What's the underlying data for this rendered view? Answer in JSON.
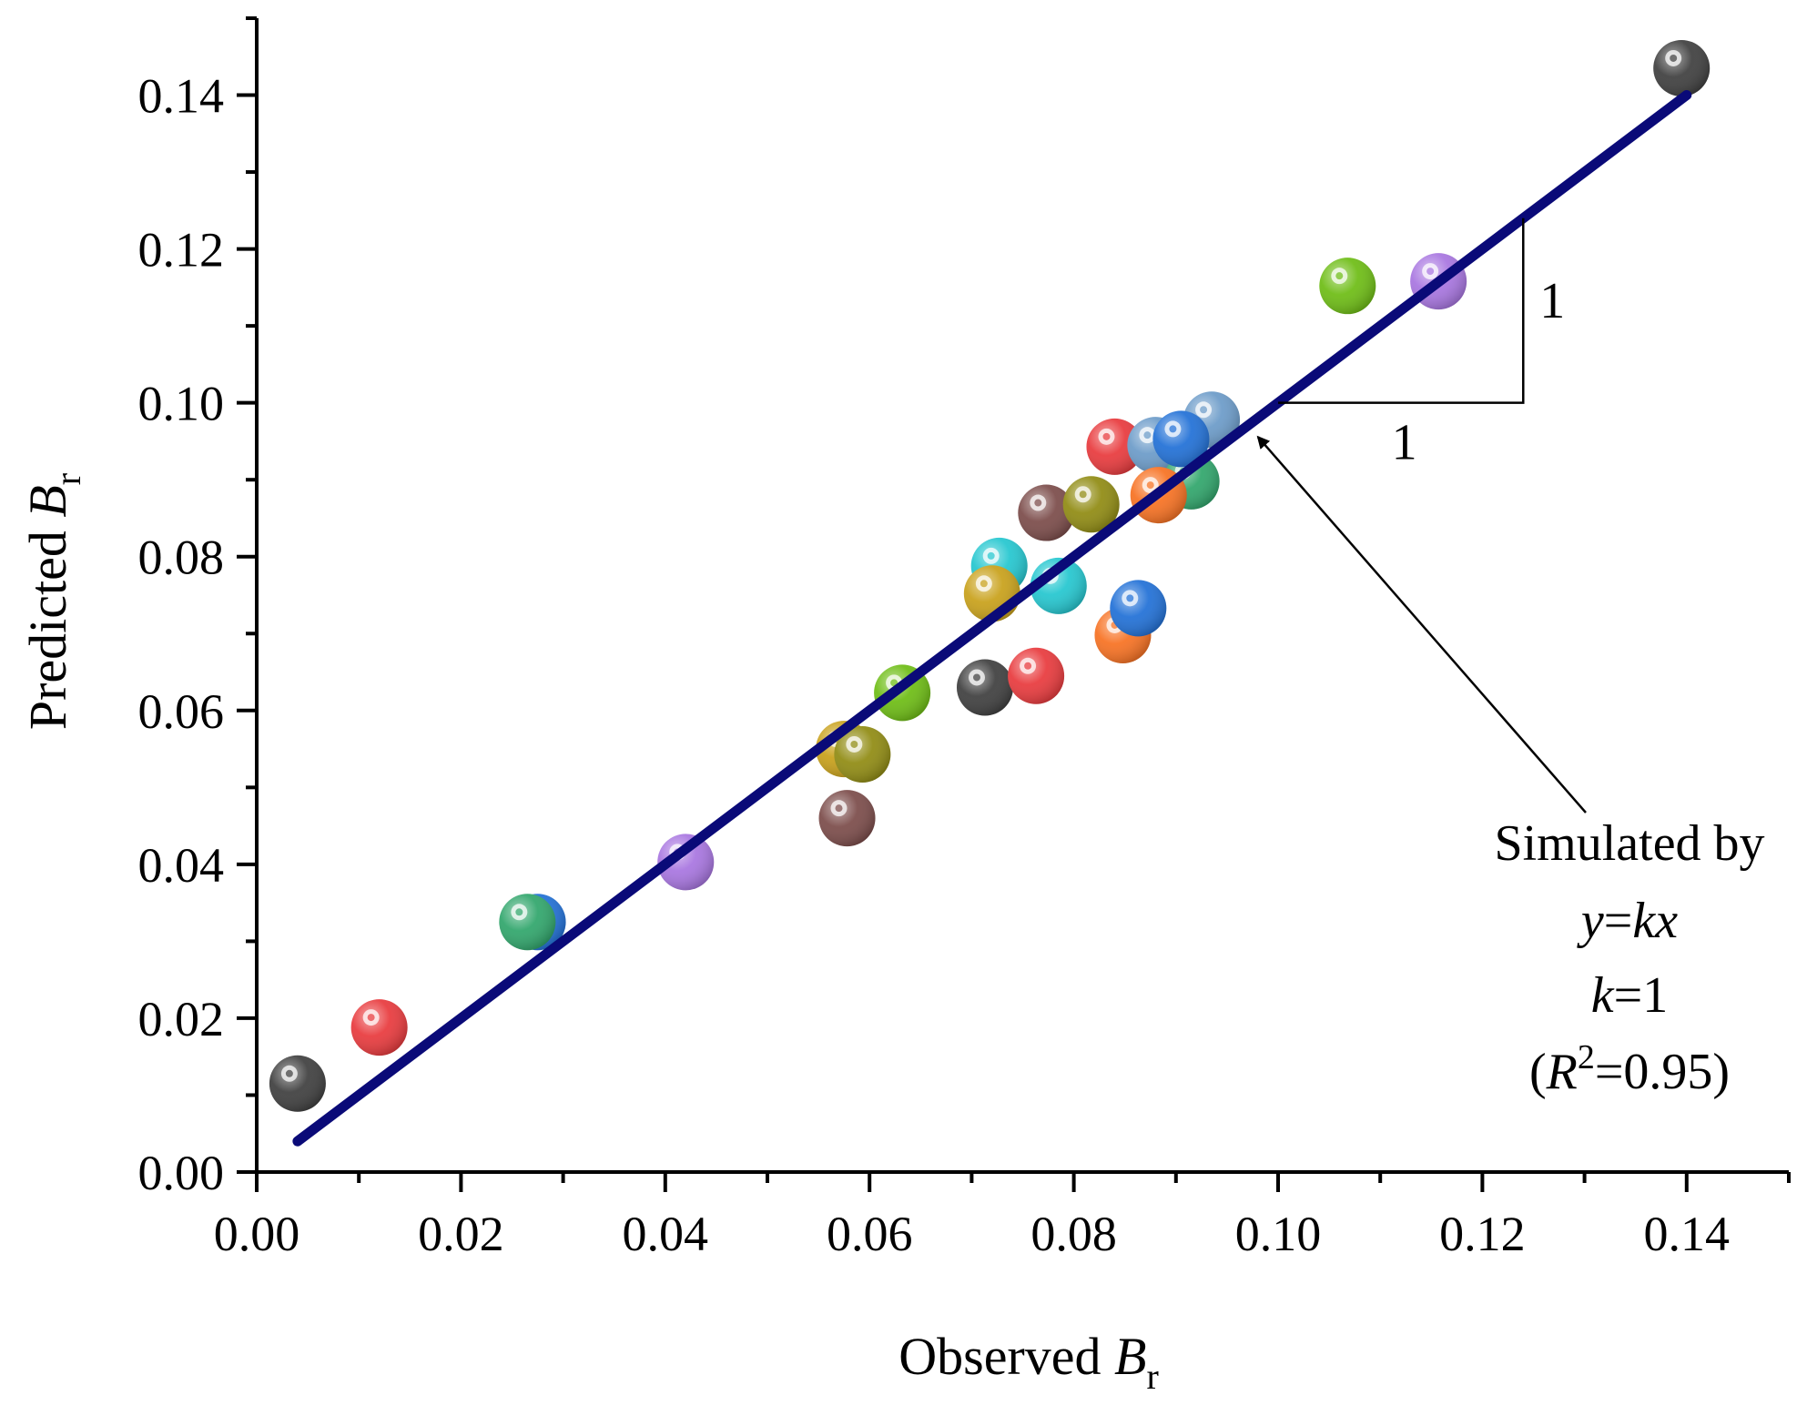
{
  "chart_data": {
    "type": "scatter",
    "xlabel": {
      "text": "Observed ",
      "var": "B",
      "sub": "r"
    },
    "ylabel": {
      "text": "Predicted ",
      "var": "B",
      "sub": "r"
    },
    "xlim": [
      0.0,
      0.15
    ],
    "ylim": [
      0.0,
      0.15
    ],
    "x_ticks": [
      0.0,
      0.02,
      0.04,
      0.06,
      0.08,
      0.1,
      0.12,
      0.14
    ],
    "x_tick_labels": [
      "0.00",
      "0.02",
      "0.04",
      "0.06",
      "0.08",
      "0.10",
      "0.12",
      "0.14"
    ],
    "y_ticks": [
      0.0,
      0.02,
      0.04,
      0.06,
      0.08,
      0.1,
      0.12,
      0.14
    ],
    "y_tick_labels": [
      "0.00",
      "0.02",
      "0.04",
      "0.06",
      "0.08",
      "0.10",
      "0.12",
      "0.14"
    ],
    "grid": false,
    "points": [
      {
        "x": 0.004,
        "y": 0.0115,
        "color": "#3d3d3d"
      },
      {
        "x": 0.012,
        "y": 0.0188,
        "color": "#e8383b"
      },
      {
        "x": 0.0275,
        "y": 0.0325,
        "color": "#1f6fd6"
      },
      {
        "x": 0.0265,
        "y": 0.0325,
        "color": "#2ea56a"
      },
      {
        "x": 0.042,
        "y": 0.0403,
        "color": "#a774e0"
      },
      {
        "x": 0.0578,
        "y": 0.046,
        "color": "#7a4a48"
      },
      {
        "x": 0.0575,
        "y": 0.055,
        "color": "#c8a018"
      },
      {
        "x": 0.0593,
        "y": 0.0543,
        "color": "#8f8a10"
      },
      {
        "x": 0.0632,
        "y": 0.0623,
        "color": "#6cbc12"
      },
      {
        "x": 0.0713,
        "y": 0.063,
        "color": "#3d3d3d"
      },
      {
        "x": 0.0763,
        "y": 0.0645,
        "color": "#e8383b"
      },
      {
        "x": 0.0727,
        "y": 0.0788,
        "color": "#22c6cf"
      },
      {
        "x": 0.0785,
        "y": 0.0762,
        "color": "#22c6cf"
      },
      {
        "x": 0.072,
        "y": 0.0752,
        "color": "#c8a018"
      },
      {
        "x": 0.0773,
        "y": 0.0857,
        "color": "#7a4a48"
      },
      {
        "x": 0.0817,
        "y": 0.0868,
        "color": "#8f8a10"
      },
      {
        "x": 0.0848,
        "y": 0.0698,
        "color": "#f77020"
      },
      {
        "x": 0.0863,
        "y": 0.0733,
        "color": "#1f6fd6"
      },
      {
        "x": 0.084,
        "y": 0.0943,
        "color": "#e8383b"
      },
      {
        "x": 0.088,
        "y": 0.0945,
        "color": "#6a9ac8"
      },
      {
        "x": 0.0915,
        "y": 0.0898,
        "color": "#2ea56a"
      },
      {
        "x": 0.0883,
        "y": 0.088,
        "color": "#f77020"
      },
      {
        "x": 0.0935,
        "y": 0.0978,
        "color": "#6a9ac8"
      },
      {
        "x": 0.0905,
        "y": 0.0953,
        "color": "#1f6fd6"
      },
      {
        "x": 0.1068,
        "y": 0.1152,
        "color": "#6cbc12"
      },
      {
        "x": 0.1157,
        "y": 0.1158,
        "color": "#a774e0"
      },
      {
        "x": 0.1395,
        "y": 0.1435,
        "color": "#3d3d3d"
      }
    ],
    "fit_line": {
      "x_start": 0.004,
      "x_end": 0.14,
      "slope": 1,
      "color": "#0a0a78"
    },
    "slope_triangle": {
      "x_start": 0.1,
      "x_end": 0.124,
      "rise_label": "1",
      "run_label": "1"
    },
    "annotation": {
      "line1": "Simulated by",
      "line2_var_y": "y",
      "line2_eq": "=",
      "line2_var_kx": "kx",
      "line3_var_k": "k",
      "line3_rest": "=1",
      "line4_open": "(",
      "line4_var_r": "R",
      "line4_sup": "2",
      "line4_rest": "=0.95)",
      "arrow_target": [
        0.0975,
        0.0965
      ]
    }
  }
}
